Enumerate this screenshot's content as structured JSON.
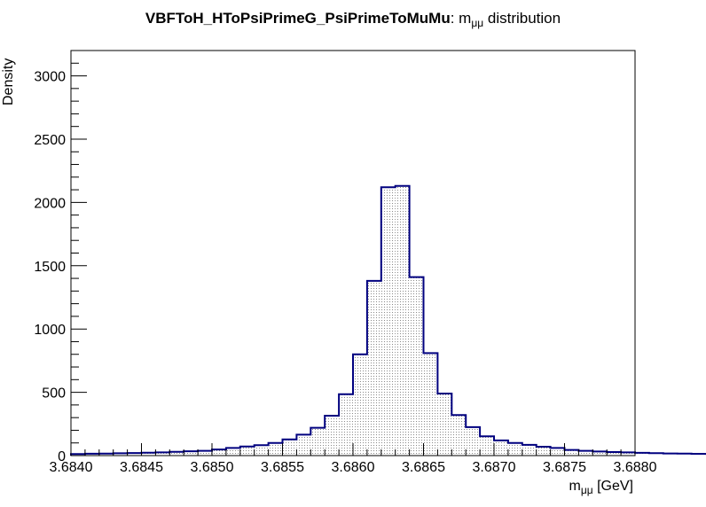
{
  "chart_data": {
    "type": "bar",
    "title_bold": "VBFToH_HToPsiPrimeG_PsiPrimeToMuMu",
    "title_rest": ": m",
    "title_sub": "μμ",
    "title_tail": " distribution",
    "xlabel": "m",
    "xlabel_sub": "μμ",
    "xlabel_unit": " [GeV]",
    "ylabel": "Density",
    "xlim": [
      3.684,
      3.688
    ],
    "ylim": [
      0,
      3200
    ],
    "bin_width": 0.0001,
    "x_start": 3.684,
    "xticks": [
      "3.6840",
      "3.6845",
      "3.6850",
      "3.6855",
      "3.6860",
      "3.6865",
      "3.6870",
      "3.6875",
      "3.6880"
    ],
    "yticks": [
      "0",
      "500",
      "1000",
      "1500",
      "2000",
      "2500",
      "3000"
    ],
    "values": [
      12,
      15,
      16,
      18,
      20,
      23,
      25,
      30,
      34,
      38,
      48,
      60,
      72,
      82,
      100,
      128,
      165,
      220,
      315,
      485,
      800,
      1380,
      2120,
      2130,
      1410,
      810,
      490,
      320,
      225,
      152,
      120,
      100,
      85,
      70,
      60,
      45,
      38,
      32,
      28,
      25,
      22,
      19,
      17,
      16,
      14,
      13,
      12,
      10,
      9,
      8,
      7,
      6,
      5,
      5
    ],
    "fill": "hatched-gray",
    "line_color": "#00007f"
  }
}
